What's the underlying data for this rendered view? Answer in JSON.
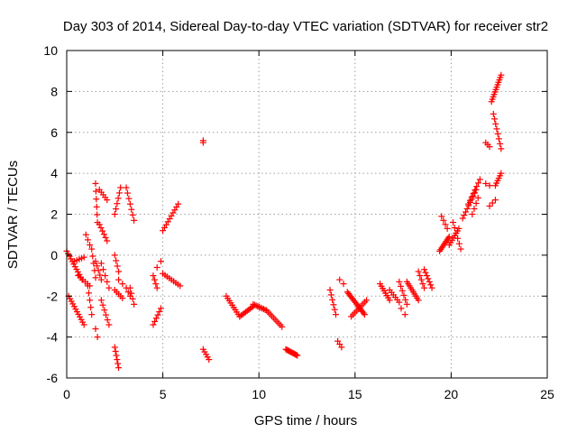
{
  "chart_data": {
    "type": "scatter",
    "title": "Day 303 of 2014, Sidereal Day-to-day VTEC variation (SDTVAR) for receiver str2",
    "xlabel": "GPS time / hours",
    "ylabel": "SDTVAR / TECUs",
    "xlim": [
      0,
      25
    ],
    "ylim": [
      -6,
      10
    ],
    "xticks": [
      "0",
      "5",
      "10",
      "15",
      "20",
      "25"
    ],
    "yticks": [
      "-6",
      "-4",
      "-2",
      "0",
      "2",
      "4",
      "6",
      "8",
      "10"
    ],
    "grid": true,
    "marker": "+",
    "color": "#ff0000",
    "segments": [
      {
        "x0": 0.0,
        "x1": 0.8,
        "y0": 0.2,
        "y1": -1.2,
        "n": 12
      },
      {
        "x0": 0.1,
        "x1": 0.9,
        "y0": -2.0,
        "y1": -3.4,
        "n": 12
      },
      {
        "x0": 0.4,
        "x1": 0.9,
        "y0": -0.3,
        "y1": -0.1,
        "n": 5
      },
      {
        "x0": 0.6,
        "x1": 1.2,
        "y0": -1.0,
        "y1": -1.5,
        "n": 6
      },
      {
        "x0": 1.0,
        "x1": 1.2,
        "y0": 1.0,
        "y1": 0.5,
        "n": 3
      },
      {
        "x0": 1.1,
        "x1": 1.3,
        "y0": -1.5,
        "y1": -2.9,
        "n": 5
      },
      {
        "x0": 1.3,
        "x1": 1.5,
        "y0": 0.3,
        "y1": -1.1,
        "n": 5
      },
      {
        "x0": 1.5,
        "x1": 1.6,
        "y0": -3.6,
        "y1": -4.0,
        "n": 2
      },
      {
        "x0": 1.5,
        "x1": 1.6,
        "y0": 3.5,
        "y1": 1.6,
        "n": 6
      },
      {
        "x0": 1.5,
        "x1": 1.8,
        "y0": -0.3,
        "y1": -1.2,
        "n": 5
      },
      {
        "x0": 1.7,
        "x1": 2.1,
        "y0": 1.5,
        "y1": 0.7,
        "n": 6
      },
      {
        "x0": 1.7,
        "x1": 2.1,
        "y0": 3.2,
        "y1": 2.7,
        "n": 5
      },
      {
        "x0": 1.8,
        "x1": 2.2,
        "y0": -0.4,
        "y1": -1.6,
        "n": 5
      },
      {
        "x0": 1.8,
        "x1": 2.2,
        "y0": -2.2,
        "y1": -3.4,
        "n": 6
      },
      {
        "x0": 2.5,
        "x1": 2.7,
        "y0": -4.5,
        "y1": -5.5,
        "n": 6
      },
      {
        "x0": 2.5,
        "x1": 2.7,
        "y0": 0.0,
        "y1": -0.8,
        "n": 4
      },
      {
        "x0": 2.5,
        "x1": 2.8,
        "y0": 2.0,
        "y1": 3.3,
        "n": 6
      },
      {
        "x0": 2.5,
        "x1": 2.9,
        "y0": -1.7,
        "y1": -2.1,
        "n": 5
      },
      {
        "x0": 2.7,
        "x1": 2.9,
        "y0": -1.2,
        "y1": -1.4,
        "n": 2
      },
      {
        "x0": 3.1,
        "x1": 3.3,
        "y0": -1.6,
        "y1": -2.0,
        "n": 3
      },
      {
        "x0": 3.1,
        "x1": 3.5,
        "y0": 3.3,
        "y1": 1.7,
        "n": 7
      },
      {
        "x0": 3.3,
        "x1": 3.5,
        "y0": -1.6,
        "y1": -2.4,
        "n": 4
      },
      {
        "x0": 4.5,
        "x1": 4.7,
        "y0": -1.0,
        "y1": -1.6,
        "n": 4
      },
      {
        "x0": 4.5,
        "x1": 4.9,
        "y0": -3.4,
        "y1": -2.6,
        "n": 6
      },
      {
        "x0": 4.7,
        "x1": 4.9,
        "y0": -0.6,
        "y1": -0.3,
        "n": 2
      },
      {
        "x0": 5.0,
        "x1": 5.8,
        "y0": 1.2,
        "y1": 2.5,
        "n": 10
      },
      {
        "x0": 5.0,
        "x1": 5.9,
        "y0": -0.9,
        "y1": -1.5,
        "n": 9
      },
      {
        "x0": 7.1,
        "x1": 7.1,
        "y0": 5.6,
        "y1": 5.5,
        "n": 2
      },
      {
        "x0": 7.1,
        "x1": 7.4,
        "y0": -4.6,
        "y1": -5.1,
        "n": 5
      },
      {
        "x0": 8.3,
        "x1": 9.0,
        "y0": -2.0,
        "y1": -3.0,
        "n": 10
      },
      {
        "x0": 9.0,
        "x1": 9.7,
        "y0": -3.0,
        "y1": -2.5,
        "n": 10
      },
      {
        "x0": 9.7,
        "x1": 10.4,
        "y0": -2.4,
        "y1": -2.7,
        "n": 10
      },
      {
        "x0": 10.4,
        "x1": 11.2,
        "y0": -2.7,
        "y1": -3.5,
        "n": 10
      },
      {
        "x0": 11.4,
        "x1": 12.0,
        "y0": -4.6,
        "y1": -4.9,
        "n": 12
      },
      {
        "x0": 13.7,
        "x1": 14.0,
        "y0": -1.7,
        "y1": -2.9,
        "n": 6
      },
      {
        "x0": 14.1,
        "x1": 14.3,
        "y0": -4.2,
        "y1": -4.5,
        "n": 3
      },
      {
        "x0": 14.2,
        "x1": 14.4,
        "y0": -1.2,
        "y1": -1.4,
        "n": 2
      },
      {
        "x0": 14.6,
        "x1": 15.5,
        "y0": -1.8,
        "y1": -2.9,
        "n": 16
      },
      {
        "x0": 14.8,
        "x1": 15.6,
        "y0": -3.0,
        "y1": -2.2,
        "n": 10
      },
      {
        "x0": 16.3,
        "x1": 16.8,
        "y0": -1.4,
        "y1": -2.2,
        "n": 8
      },
      {
        "x0": 16.8,
        "x1": 17.3,
        "y0": -1.7,
        "y1": -2.3,
        "n": 6
      },
      {
        "x0": 17.3,
        "x1": 17.7,
        "y0": -1.3,
        "y1": -2.4,
        "n": 6
      },
      {
        "x0": 17.4,
        "x1": 17.6,
        "y0": -2.6,
        "y1": -2.9,
        "n": 2
      },
      {
        "x0": 17.7,
        "x1": 18.3,
        "y0": -1.3,
        "y1": -2.2,
        "n": 10
      },
      {
        "x0": 18.3,
        "x1": 18.6,
        "y0": -0.8,
        "y1": -1.6,
        "n": 5
      },
      {
        "x0": 18.6,
        "x1": 19.0,
        "y0": -0.7,
        "y1": -1.6,
        "n": 7
      },
      {
        "x0": 19.4,
        "x1": 19.9,
        "y0": 0.2,
        "y1": 0.9,
        "n": 10
      },
      {
        "x0": 19.5,
        "x1": 19.8,
        "y0": 1.9,
        "y1": 1.3,
        "n": 4
      },
      {
        "x0": 19.9,
        "x1": 20.4,
        "y0": 0.5,
        "y1": 1.3,
        "n": 8
      },
      {
        "x0": 20.1,
        "x1": 20.5,
        "y0": 1.6,
        "y1": 0.3,
        "n": 6
      },
      {
        "x0": 20.6,
        "x1": 21.3,
        "y0": 1.8,
        "y1": 3.2,
        "n": 10
      },
      {
        "x0": 20.9,
        "x1": 21.5,
        "y0": 2.5,
        "y1": 3.7,
        "n": 8
      },
      {
        "x0": 21.1,
        "x1": 21.4,
        "y0": 2.0,
        "y1": 2.8,
        "n": 4
      },
      {
        "x0": 21.8,
        "x1": 22.0,
        "y0": 5.5,
        "y1": 5.3,
        "n": 3
      },
      {
        "x0": 21.8,
        "x1": 22.0,
        "y0": 3.5,
        "y1": 3.4,
        "n": 2
      },
      {
        "x0": 22.1,
        "x1": 22.6,
        "y0": 7.5,
        "y1": 8.8,
        "n": 12
      },
      {
        "x0": 22.2,
        "x1": 22.6,
        "y0": 6.9,
        "y1": 5.2,
        "n": 8
      },
      {
        "x0": 22.3,
        "x1": 22.6,
        "y0": 3.4,
        "y1": 4.0,
        "n": 6
      },
      {
        "x0": 22.0,
        "x1": 22.3,
        "y0": 2.4,
        "y1": 2.7,
        "n": 3
      }
    ]
  }
}
